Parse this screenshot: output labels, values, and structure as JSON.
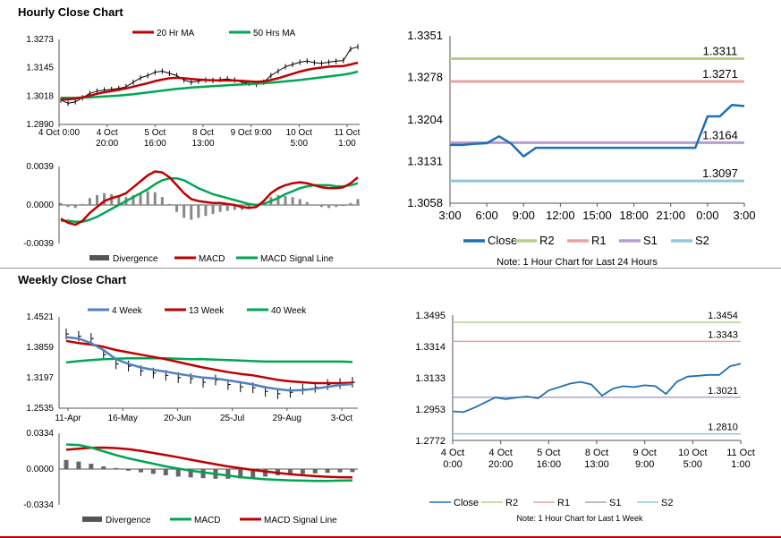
{
  "sections": {
    "hourly_title": "Hourly Close Chart",
    "weekly_title": "Weekly Close Chart"
  },
  "colors": {
    "red": "#c00000",
    "green": "#00a651",
    "blue": "#1f6fb5",
    "steelblue": "#4f81bd",
    "r2": "#b4d08a",
    "r1": "#e8a2a0",
    "s1": "#b49fcc",
    "s2": "#8fc8d8",
    "gray": "#7f7f7f"
  },
  "chart_data": [
    {
      "id": "hourly_price",
      "type": "line",
      "legend": [
        "20 Hr MA",
        "50 Hrs MA"
      ],
      "y_ticks": [
        "1.3273",
        "1.3145",
        "1.3018",
        "1.2890"
      ],
      "ylim": [
        1.289,
        1.3273
      ],
      "x_tick_labels": [
        [
          "4 Oct 0:00"
        ],
        [
          "4 Oct",
          "20:00"
        ],
        [
          "5 Oct",
          "16:00"
        ],
        [
          "8 Oct",
          "13:00"
        ],
        [
          "9 Oct 9:00"
        ],
        [
          "10 Oct",
          "5:00"
        ],
        [
          "11 Oct",
          "1:00"
        ]
      ],
      "close": [
        1.3,
        1.2985,
        1.2992,
        1.301,
        1.303,
        1.304,
        1.3045,
        1.3048,
        1.3052,
        1.306,
        1.308,
        1.31,
        1.311,
        1.3125,
        1.313,
        1.312,
        1.311,
        1.309,
        1.308,
        1.3085,
        1.309,
        1.3088,
        1.3092,
        1.3095,
        1.309,
        1.308,
        1.3075,
        1.307,
        1.308,
        1.311,
        1.313,
        1.315,
        1.316,
        1.317,
        1.3175,
        1.3168,
        1.3165,
        1.317,
        1.3175,
        1.3178,
        1.323,
        1.324
      ],
      "ma20": [
        1.3002,
        1.3003,
        1.3006,
        1.3012,
        1.302,
        1.3028,
        1.3035,
        1.304,
        1.3046,
        1.3052,
        1.306,
        1.3068,
        1.3076,
        1.3085,
        1.3092,
        1.3098,
        1.31,
        1.3098,
        1.3095,
        1.3092,
        1.309,
        1.3089,
        1.3088,
        1.3088,
        1.3088,
        1.3086,
        1.3084,
        1.3082,
        1.3084,
        1.309,
        1.3098,
        1.3108,
        1.3118,
        1.3128,
        1.3136,
        1.3142,
        1.3146,
        1.315,
        1.3152,
        1.3153,
        1.316,
        1.3168
      ],
      "ma50": [
        1.301,
        1.301,
        1.301,
        1.3011,
        1.3012,
        1.3014,
        1.3016,
        1.3018,
        1.302,
        1.3023,
        1.3026,
        1.303,
        1.3034,
        1.3038,
        1.3042,
        1.3046,
        1.305,
        1.3053,
        1.3056,
        1.3058,
        1.306,
        1.3062,
        1.3064,
        1.3066,
        1.3068,
        1.307,
        1.3072,
        1.3074,
        1.3076,
        1.3078,
        1.3081,
        1.3084,
        1.3087,
        1.309,
        1.3094,
        1.3098,
        1.3102,
        1.3106,
        1.311,
        1.3114,
        1.312,
        1.3128
      ]
    },
    {
      "id": "hourly_macd",
      "type": "line",
      "legend": [
        "Divergence",
        "MACD",
        "MACD Signal Line"
      ],
      "y_ticks": [
        "0.0039",
        "0.0000",
        "-0.0039"
      ],
      "ylim": [
        -0.0039,
        0.0039
      ],
      "macd": [
        -0.0014,
        -0.0018,
        -0.002,
        -0.0016,
        -0.0008,
        -0.0002,
        0.0004,
        0.0007,
        0.0009,
        0.0012,
        0.0018,
        0.0024,
        0.003,
        0.0034,
        0.0033,
        0.0028,
        0.002,
        0.0012,
        0.0006,
        0.0004,
        0.0003,
        0.0002,
        0.0002,
        0.0001,
        0.0,
        -0.0002,
        -0.0003,
        -0.0002,
        0.0004,
        0.0012,
        0.0017,
        0.002,
        0.0022,
        0.0023,
        0.0022,
        0.002,
        0.0018,
        0.0017,
        0.0017,
        0.0018,
        0.0022,
        0.0028
      ],
      "signal": [
        -0.0016,
        -0.0016,
        -0.0017,
        -0.0017,
        -0.0015,
        -0.0012,
        -0.0008,
        -0.0004,
        0.0,
        0.0004,
        0.0008,
        0.0012,
        0.0016,
        0.0021,
        0.0025,
        0.0027,
        0.0027,
        0.0025,
        0.0021,
        0.0017,
        0.0014,
        0.0011,
        0.0009,
        0.0007,
        0.0005,
        0.0003,
        0.0001,
        0.0,
        0.0001,
        0.0004,
        0.0007,
        0.0011,
        0.0014,
        0.0017,
        0.0019,
        0.002,
        0.002,
        0.002,
        0.0019,
        0.0019,
        0.002,
        0.0022
      ],
      "divergence": [
        0.0002,
        -0.0002,
        -0.0003,
        0.0001,
        0.0007,
        0.001,
        0.0012,
        0.0011,
        0.0009,
        0.0008,
        0.001,
        0.0012,
        0.0014,
        0.0013,
        0.0008,
        0.0001,
        -0.0007,
        -0.0013,
        -0.0015,
        -0.0013,
        -0.0011,
        -0.0009,
        -0.0007,
        -0.0006,
        -0.0005,
        -0.0005,
        -0.0004,
        -0.0002,
        0.0003,
        0.0008,
        0.001,
        0.0009,
        0.0008,
        0.0006,
        0.0003,
        0.0,
        -0.0002,
        -0.0003,
        -0.0002,
        -0.0001,
        0.0002,
        0.0006
      ]
    },
    {
      "id": "hourly_pivots",
      "type": "line",
      "y_ticks": [
        "1.3351",
        "1.3278",
        "1.3204",
        "1.3131",
        "1.3058"
      ],
      "ylim": [
        1.3058,
        1.3351
      ],
      "x_ticks": [
        "3:00",
        "6:00",
        "9:00",
        "12:00",
        "15:00",
        "18:00",
        "21:00",
        "0:00",
        "3:00"
      ],
      "levels": {
        "R2": 1.3311,
        "R1": 1.3271,
        "S1": 1.3164,
        "S2": 1.3097
      },
      "level_labels": {
        "R2": "1.3311",
        "R1": "1.3271",
        "S1": "1.3164",
        "S2": "1.3097"
      },
      "close": [
        1.316,
        1.316,
        1.3162,
        1.3163,
        1.3175,
        1.3162,
        1.314,
        1.3155,
        1.3155,
        1.3155,
        1.3155,
        1.3155,
        1.3155,
        1.3155,
        1.3155,
        1.3155,
        1.3155,
        1.3155,
        1.3155,
        1.3155,
        1.3155,
        1.321,
        1.321,
        1.323,
        1.3228
      ],
      "legend": [
        "Close",
        "R2",
        "R1",
        "S1",
        "S2"
      ],
      "note": "Note: 1 Hour Chart for Last 24 Hours"
    },
    {
      "id": "weekly_price",
      "type": "line",
      "legend": [
        "4 Week",
        "13 Week",
        "40 Week"
      ],
      "y_ticks": [
        "1.4521",
        "1.3859",
        "1.3197",
        "1.2535"
      ],
      "ylim": [
        1.2535,
        1.4521
      ],
      "x_ticks": [
        "11-Apr",
        "16-May",
        "20-Jun",
        "25-Jul",
        "29-Aug",
        "3-Oct"
      ],
      "close": [
        1.415,
        1.41,
        1.405,
        1.37,
        1.35,
        1.345,
        1.335,
        1.33,
        1.325,
        1.32,
        1.318,
        1.31,
        1.315,
        1.305,
        1.3,
        1.298,
        1.29,
        1.285,
        1.288,
        1.295,
        1.299,
        1.305,
        1.307,
        1.31
      ],
      "w4": [
        1.408,
        1.405,
        1.395,
        1.38,
        1.36,
        1.35,
        1.342,
        1.337,
        1.333,
        1.328,
        1.324,
        1.32,
        1.318,
        1.314,
        1.31,
        1.305,
        1.299,
        1.295,
        1.292,
        1.293,
        1.296,
        1.3,
        1.304,
        1.306
      ],
      "w13": [
        1.4,
        1.395,
        1.392,
        1.387,
        1.38,
        1.375,
        1.37,
        1.365,
        1.36,
        1.354,
        1.348,
        1.342,
        1.337,
        1.332,
        1.328,
        1.325,
        1.32,
        1.315,
        1.312,
        1.31,
        1.308,
        1.308,
        1.308,
        1.309
      ],
      "w40": [
        1.353,
        1.356,
        1.358,
        1.36,
        1.361,
        1.362,
        1.362,
        1.362,
        1.362,
        1.361,
        1.36,
        1.36,
        1.359,
        1.358,
        1.357,
        1.356,
        1.355,
        1.355,
        1.355,
        1.355,
        1.355,
        1.355,
        1.355,
        1.354
      ]
    },
    {
      "id": "weekly_macd",
      "type": "line",
      "legend": [
        "Divergence",
        "MACD",
        "MACD Signal Line"
      ],
      "y_ticks": [
        "0.0334",
        "0.0000",
        "-0.0334"
      ],
      "ylim": [
        -0.0334,
        0.0334
      ],
      "macd": [
        0.023,
        0.0225,
        0.02,
        0.0165,
        0.013,
        0.01,
        0.0075,
        0.005,
        0.0025,
        0.0005,
        -0.0015,
        -0.003,
        -0.0045,
        -0.006,
        -0.0075,
        -0.0085,
        -0.0095,
        -0.01,
        -0.0105,
        -0.0108,
        -0.011,
        -0.011,
        -0.0108,
        -0.0105
      ],
      "signal": [
        0.018,
        0.019,
        0.0198,
        0.02,
        0.0195,
        0.0185,
        0.017,
        0.015,
        0.013,
        0.011,
        0.0088,
        0.0066,
        0.0045,
        0.0025,
        0.0008,
        -0.0008,
        -0.0022,
        -0.0035,
        -0.0048,
        -0.0058,
        -0.0066,
        -0.0072,
        -0.0076,
        -0.0078
      ],
      "divergence": [
        0.0085,
        0.007,
        0.005,
        0.0025,
        0.001,
        -0.0015,
        -0.003,
        -0.0045,
        -0.0058,
        -0.007,
        -0.0078,
        -0.0085,
        -0.009,
        -0.009,
        -0.0088,
        -0.008,
        -0.007,
        -0.0058,
        -0.005,
        -0.0045,
        -0.004,
        -0.0035,
        -0.003,
        -0.0028
      ]
    },
    {
      "id": "weekly_pivots",
      "type": "line",
      "y_ticks": [
        "1.3495",
        "1.3314",
        "1.3133",
        "1.2953",
        "1.2772"
      ],
      "ylim": [
        1.2772,
        1.3495
      ],
      "x_tick_labels": [
        [
          "4 Oct",
          "0:00"
        ],
        [
          "4 Oct",
          "20:00"
        ],
        [
          "5 Oct",
          "16:00"
        ],
        [
          "8 Oct",
          "13:00"
        ],
        [
          "9 Oct",
          "9:00"
        ],
        [
          "10 Oct",
          "5:00"
        ],
        [
          "11 Oct",
          "1:00"
        ]
      ],
      "levels": {
        "R2": 1.3454,
        "R1": 1.3343,
        "S1": 1.3021,
        "S2": 1.281
      },
      "level_labels": {
        "R2": "1.3454",
        "R1": "1.3343",
        "S1": "1.3021",
        "S2": "1.2810"
      },
      "close": [
        1.294,
        1.2935,
        1.296,
        1.299,
        1.302,
        1.301,
        1.302,
        1.3025,
        1.3015,
        1.306,
        1.308,
        1.31,
        1.311,
        1.3095,
        1.303,
        1.307,
        1.3085,
        1.308,
        1.309,
        1.3085,
        1.304,
        1.311,
        1.314,
        1.3145,
        1.315,
        1.315,
        1.32,
        1.3215
      ],
      "legend": [
        "Close",
        "R2",
        "R1",
        "S1",
        "S2"
      ],
      "note": "Note: 1 Hour Chart for Last 1 Week"
    }
  ]
}
